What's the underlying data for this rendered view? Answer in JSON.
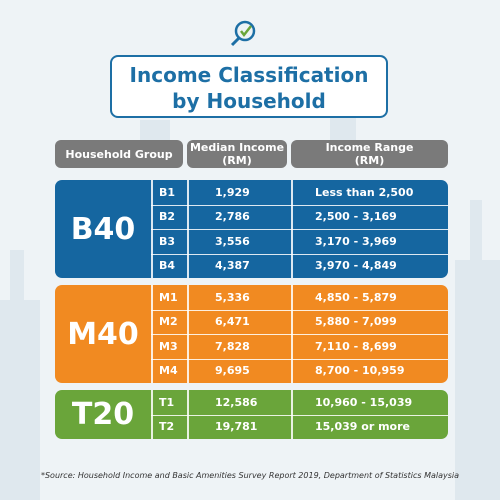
{
  "title": [
    "Income Classification",
    "by Household"
  ],
  "headers": {
    "group": "Household Group",
    "median": [
      "Median Income",
      "(RM)"
    ],
    "range": [
      "Income Range",
      "(RM)"
    ]
  },
  "groups": [
    {
      "label": "B40",
      "rows": [
        [
          "B1",
          "1,929",
          "Less than  2,500"
        ],
        [
          "B2",
          "2,786",
          "2,500 - 3,169"
        ],
        [
          "B3",
          "3,556",
          "3,170 - 3,969"
        ],
        [
          "B4",
          "4,387",
          "3,970 - 4,849"
        ]
      ]
    },
    {
      "label": "M40",
      "rows": [
        [
          "M1",
          "5,336",
          "4,850 - 5,879"
        ],
        [
          "M2",
          "6,471",
          "5,880 - 7,099"
        ],
        [
          "M3",
          "7,828",
          "7,110 - 8,699"
        ],
        [
          "M4",
          "9,695",
          "8,700 - 10,959"
        ]
      ]
    },
    {
      "label": "T20",
      "rows": [
        [
          "T1",
          "12,586",
          "10,960 - 15,039"
        ],
        [
          "T2",
          "19,781",
          "15,039 or more"
        ]
      ]
    }
  ],
  "source": "*Source:  Household Income and Basic Amenities Survey Report 2019, Department of Statistics Malaysia"
}
